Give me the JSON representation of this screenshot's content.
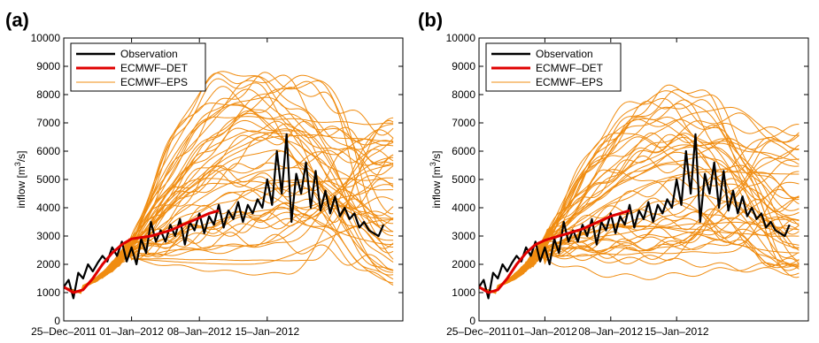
{
  "chart_data": [
    {
      "type": "line",
      "panel_label": "(a)",
      "ylabel_main": "inflow [m",
      "ylabel_sup": "3",
      "ylabel_tail": "/s]",
      "ylim": [
        0,
        10000
      ],
      "yticks": [
        0,
        1000,
        2000,
        3000,
        4000,
        5000,
        6000,
        7000,
        8000,
        9000,
        10000
      ],
      "xlim": [
        0,
        35
      ],
      "xticks": [
        {
          "x": 0,
          "label": "25–Dec–2011"
        },
        {
          "x": 7,
          "label": "01–Jan–2012"
        },
        {
          "x": 14,
          "label": "08–Jan–2012"
        },
        {
          "x": 21,
          "label": "15–Jan–2012"
        }
      ],
      "grid": false,
      "legend": {
        "placement": "top-left",
        "entries": [
          {
            "name": "Observation",
            "color": "#000000"
          },
          {
            "name": "ECMWF–DET",
            "color": "#e00000"
          },
          {
            "name": "ECMWF–EPS",
            "color": "#f08c10"
          }
        ]
      },
      "series": [
        {
          "name": "Observation",
          "x": [
            0,
            0.5,
            1,
            1.5,
            2,
            2.5,
            3,
            3.5,
            4,
            4.5,
            5,
            5.5,
            6,
            6.5,
            7,
            7.5,
            8,
            8.5,
            9,
            9.5,
            10,
            10.5,
            11,
            11.5,
            12,
            12.5,
            13,
            13.5,
            14,
            14.5,
            15,
            15.5,
            16,
            16.5,
            17,
            17.5,
            18,
            18.5,
            19,
            19.5,
            20,
            20.5,
            21,
            21.5,
            22,
            22.5,
            23,
            23.5,
            24,
            24.5,
            25,
            25.5,
            26,
            26.5,
            27,
            27.5,
            28,
            28.5,
            29,
            29.5,
            30,
            30.5,
            31,
            31.5,
            32,
            32.5,
            33
          ],
          "values": [
            1200,
            1450,
            800,
            1700,
            1500,
            2000,
            1750,
            2050,
            2300,
            2100,
            2600,
            2300,
            2800,
            2100,
            2600,
            2000,
            2900,
            2400,
            3500,
            2800,
            3200,
            2800,
            3400,
            3000,
            3600,
            2700,
            3500,
            3200,
            3800,
            3100,
            3700,
            3400,
            4100,
            3300,
            3900,
            3600,
            4200,
            3500,
            4100,
            3800,
            4300,
            4000,
            5000,
            4100,
            6000,
            4500,
            6600,
            3500,
            5200,
            4500,
            5600,
            4000,
            5300,
            3900,
            4600,
            3800,
            4400,
            3700,
            4000,
            3600,
            3800,
            3300,
            3500,
            3200,
            3100,
            3000,
            3400
          ]
        },
        {
          "name": "ECMWF–DET",
          "x": [
            0,
            1,
            2,
            3,
            4,
            5,
            6,
            7,
            8,
            9,
            10,
            11,
            12,
            13,
            14,
            15,
            16
          ],
          "values": [
            1200,
            1000,
            1100,
            1500,
            2000,
            2400,
            2700,
            2900,
            2950,
            3000,
            3100,
            3200,
            3350,
            3500,
            3650,
            3800,
            3900
          ]
        }
      ]
    },
    {
      "type": "line",
      "panel_label": "(b)",
      "ylabel_main": "inflow [m",
      "ylabel_sup": "3",
      "ylabel_tail": "/s]",
      "ylim": [
        0,
        10000
      ],
      "yticks": [
        0,
        1000,
        2000,
        3000,
        4000,
        5000,
        6000,
        7000,
        8000,
        9000,
        10000
      ],
      "xlim": [
        0,
        35
      ],
      "xticks": [
        {
          "x": 0,
          "label": "25–Dec–2011"
        },
        {
          "x": 7,
          "label": "01–Jan–2012"
        },
        {
          "x": 14,
          "label": "08–Jan–2012"
        },
        {
          "x": 21,
          "label": "15–Jan–2012"
        }
      ],
      "grid": false,
      "legend": {
        "placement": "top-left",
        "entries": [
          {
            "name": "Observation",
            "color": "#000000"
          },
          {
            "name": "ECMWF–DET",
            "color": "#e00000"
          },
          {
            "name": "ECMWF–EPS",
            "color": "#f08c10"
          }
        ]
      },
      "series": [
        {
          "name": "Observation",
          "x": [
            0,
            0.5,
            1,
            1.5,
            2,
            2.5,
            3,
            3.5,
            4,
            4.5,
            5,
            5.5,
            6,
            6.5,
            7,
            7.5,
            8,
            8.5,
            9,
            9.5,
            10,
            10.5,
            11,
            11.5,
            12,
            12.5,
            13,
            13.5,
            14,
            14.5,
            15,
            15.5,
            16,
            16.5,
            17,
            17.5,
            18,
            18.5,
            19,
            19.5,
            20,
            20.5,
            21,
            21.5,
            22,
            22.5,
            23,
            23.5,
            24,
            24.5,
            25,
            25.5,
            26,
            26.5,
            27,
            27.5,
            28,
            28.5,
            29,
            29.5,
            30,
            30.5,
            31,
            31.5,
            32,
            32.5,
            33
          ],
          "values": [
            1200,
            1450,
            800,
            1700,
            1500,
            2000,
            1750,
            2050,
            2300,
            2100,
            2600,
            2300,
            2800,
            2100,
            2600,
            2000,
            2900,
            2400,
            3500,
            2800,
            3200,
            2800,
            3400,
            3000,
            3600,
            2700,
            3500,
            3200,
            3800,
            3100,
            3700,
            3400,
            4100,
            3300,
            3900,
            3600,
            4200,
            3500,
            4100,
            3800,
            4300,
            4000,
            5000,
            4100,
            6000,
            4500,
            6600,
            3500,
            5200,
            4500,
            5600,
            4000,
            5300,
            3900,
            4600,
            3800,
            4400,
            3700,
            4000,
            3600,
            3800,
            3300,
            3500,
            3200,
            3100,
            3000,
            3400
          ]
        },
        {
          "name": "ECMWF–DET",
          "x": [
            0,
            1,
            2,
            3,
            4,
            5,
            6,
            7,
            8,
            9,
            10,
            11,
            12,
            13,
            14,
            15,
            16
          ],
          "values": [
            1200,
            1000,
            1100,
            1500,
            2000,
            2400,
            2700,
            2850,
            2950,
            3050,
            3150,
            3250,
            3400,
            3550,
            3700,
            3800,
            3900
          ]
        }
      ]
    }
  ]
}
